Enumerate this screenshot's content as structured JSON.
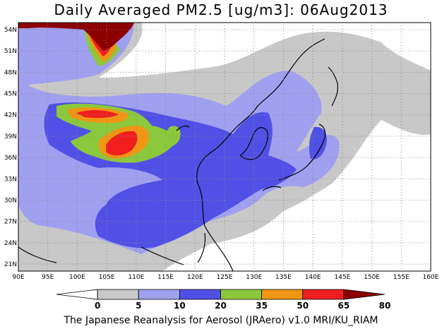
{
  "title": "Daily Averaged PM2.5 [ug/m3]: 06Aug2013",
  "credit": "The Japanese Reanalysis for Aerosol (JRAero) v1.0 MRI/KU_RIAM",
  "map": {
    "lon_range": [
      90,
      160
    ],
    "lat_range": [
      20,
      55
    ],
    "lon_ticks": [
      "90E",
      "95E",
      "100E",
      "105E",
      "110E",
      "115E",
      "120E",
      "125E",
      "130E",
      "135E",
      "140E",
      "145E",
      "150E",
      "155E",
      "160E"
    ],
    "lat_ticks": [
      "54N",
      "51N",
      "48N",
      "45N",
      "42N",
      "39N",
      "36N",
      "33N",
      "30N",
      "27N",
      "24N",
      "21N"
    ],
    "grid": "dotted"
  },
  "colorbar": {
    "levels": [
      "0",
      "5",
      "10",
      "20",
      "35",
      "50",
      "65",
      "80"
    ],
    "colors": [
      "#ffffff",
      "#c8c8c8",
      "#a0a0f0",
      "#5050e6",
      "#8cc83c",
      "#f09614",
      "#f01e1e",
      "#8c0000"
    ]
  }
}
